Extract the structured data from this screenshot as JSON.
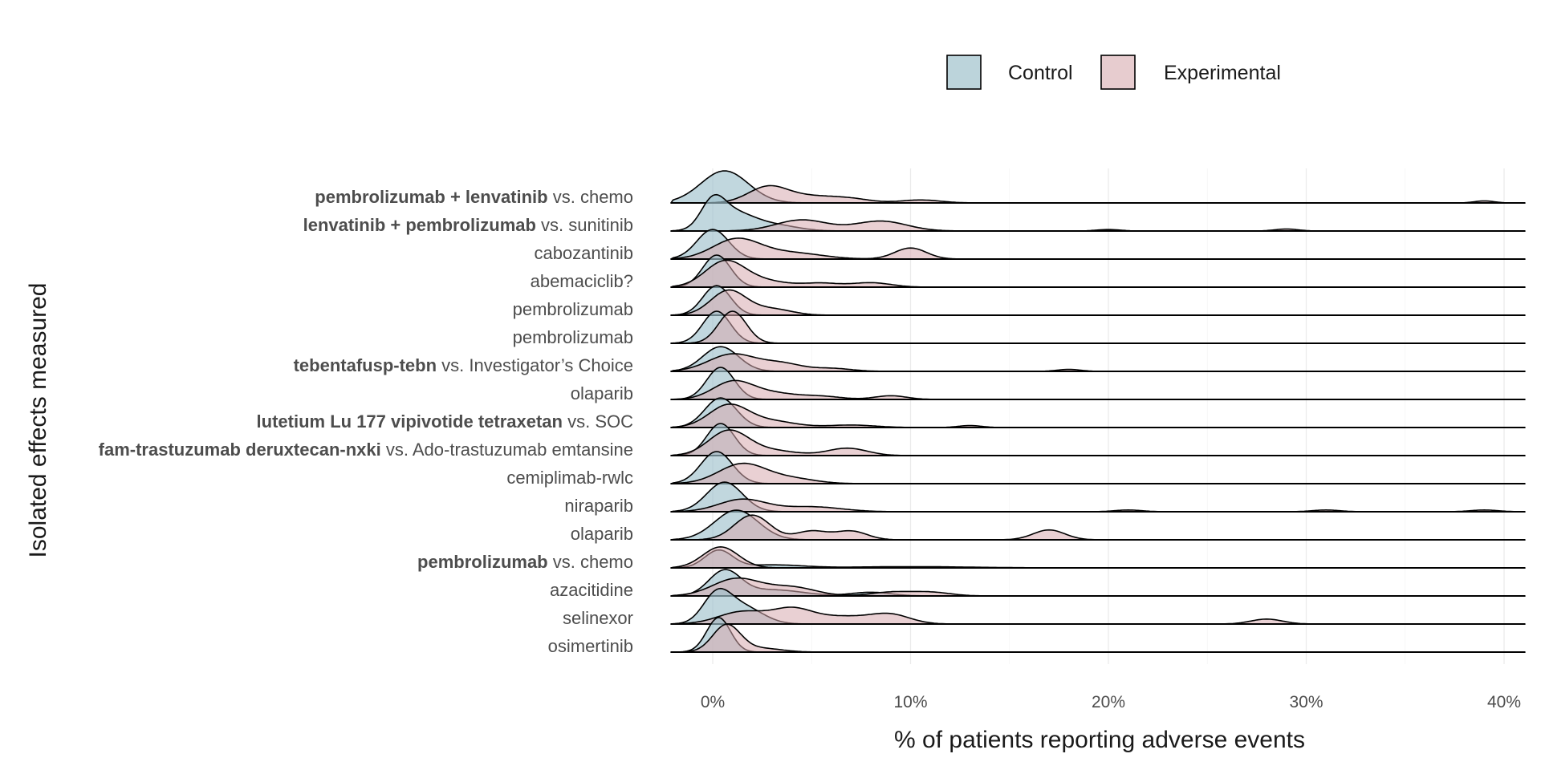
{
  "chart_data": {
    "type": "ridgeline",
    "xlabel": "% of patients reporting adverse events",
    "ylabel": "Isolated effects measured",
    "xlim": [
      -2,
      41
    ],
    "x_ticks": [
      0,
      10,
      20,
      30,
      40
    ],
    "x_tick_labels": [
      "0%",
      "10%",
      "20%",
      "30%",
      "40%"
    ],
    "grid": true,
    "legend": {
      "position": "top",
      "entries": [
        {
          "name": "Control",
          "color": "#9fc2cc"
        },
        {
          "name": "Experimental",
          "color": "#d7aaaf"
        }
      ]
    },
    "rows": [
      {
        "label_parts": [
          {
            "text": "pembrolizumab + lenvatinib",
            "bold": true
          },
          {
            "text": " vs. chemo",
            "bold": false
          }
        ],
        "control": [
          [
            0.6,
            1.2,
            1.3
          ]
        ],
        "experimental": [
          [
            2.8,
            1.0,
            0.65
          ],
          [
            5,
            1.2,
            0.25
          ],
          [
            7,
            1,
            0.15
          ],
          [
            10.5,
            1,
            0.12
          ],
          [
            39,
            0.5,
            0.08
          ]
        ]
      },
      {
        "label_parts": [
          {
            "text": "lenvatinib + pembrolizumab",
            "bold": true
          },
          {
            "text": " vs. sunitinib",
            "bold": false
          }
        ],
        "control": [
          [
            0,
            0.6,
            1.0
          ],
          [
            1.0,
            1.0,
            0.7
          ],
          [
            3,
            1.2,
            0.25
          ]
        ],
        "experimental": [
          [
            4.5,
            1.3,
            0.45
          ],
          [
            8.5,
            1.3,
            0.4
          ],
          [
            20,
            0.6,
            0.06
          ],
          [
            29,
            0.6,
            0.08
          ]
        ]
      },
      {
        "label_parts": [
          {
            "text": "cabozantinib",
            "bold": false
          }
        ],
        "control": [
          [
            0,
            0.8,
            1.2
          ]
        ],
        "experimental": [
          [
            1.2,
            1.2,
            0.8
          ],
          [
            4,
            1.5,
            0.25
          ],
          [
            10,
            0.8,
            0.45
          ]
        ]
      },
      {
        "label_parts": [
          {
            "text": "abemaciclib?",
            "bold": false
          }
        ],
        "control": [
          [
            0.2,
            0.7,
            1.3
          ]
        ],
        "experimental": [
          [
            0.6,
            1.0,
            1.0
          ],
          [
            2.5,
            1.3,
            0.25
          ],
          [
            5.5,
            0.9,
            0.15
          ],
          [
            8,
            1,
            0.18
          ]
        ]
      },
      {
        "label_parts": [
          {
            "text": "pembrolizumab",
            "bold": false
          }
        ],
        "control": [
          [
            0.2,
            0.7,
            1.2
          ]
        ],
        "experimental": [
          [
            0.8,
            0.9,
            1.0
          ],
          [
            3,
            1,
            0.25
          ]
        ]
      },
      {
        "label_parts": [
          {
            "text": "pembrolizumab",
            "bold": false
          }
        ],
        "control": [
          [
            0.2,
            0.7,
            1.3
          ]
        ],
        "experimental": [
          [
            1.0,
            0.7,
            1.3
          ]
        ]
      },
      {
        "label_parts": [
          {
            "text": "tebentafusp-tebn",
            "bold": true
          },
          {
            "text": " vs. Investigator’s Choice",
            "bold": false
          }
        ],
        "control": [
          [
            0.4,
            0.9,
            1.0
          ]
        ],
        "experimental": [
          [
            1,
            1.2,
            0.7
          ],
          [
            3.5,
            1,
            0.3
          ],
          [
            6,
            1,
            0.12
          ],
          [
            18,
            0.6,
            0.08
          ]
        ]
      },
      {
        "label_parts": [
          {
            "text": "olaparib",
            "bold": false
          }
        ],
        "control": [
          [
            0.4,
            0.7,
            1.3
          ]
        ],
        "experimental": [
          [
            1,
            1,
            0.7
          ],
          [
            3,
            1.2,
            0.25
          ],
          [
            5.5,
            1,
            0.12
          ],
          [
            9,
            0.8,
            0.15
          ]
        ]
      },
      {
        "label_parts": [
          {
            "text": "lutetium Lu 177 vipivotide tetraxetan",
            "bold": true
          },
          {
            "text": " vs. SOC",
            "bold": false
          }
        ],
        "control": [
          [
            0.4,
            0.8,
            1.2
          ]
        ],
        "experimental": [
          [
            0.8,
            1.0,
            0.9
          ],
          [
            3,
            1.2,
            0.25
          ],
          [
            7,
            1.2,
            0.1
          ],
          [
            13,
            0.6,
            0.08
          ]
        ]
      },
      {
        "label_parts": [
          {
            "text": "fam-trastuzumab deruxtecan-nxki",
            "bold": true
          },
          {
            "text": " vs. Ado-trastuzumab emtansine",
            "bold": false
          }
        ],
        "control": [
          [
            0.4,
            0.7,
            1.3
          ]
        ],
        "experimental": [
          [
            0.8,
            1.0,
            1.0
          ],
          [
            3,
            1.2,
            0.2
          ],
          [
            6.8,
            1,
            0.3
          ]
        ]
      },
      {
        "label_parts": [
          {
            "text": "cemiplimab-rwlc",
            "bold": false
          }
        ],
        "control": [
          [
            0.2,
            0.8,
            1.3
          ]
        ],
        "experimental": [
          [
            1.5,
            1.2,
            0.8
          ],
          [
            4,
            1.2,
            0.2
          ]
        ]
      },
      {
        "label_parts": [
          {
            "text": "niraparib",
            "bold": false
          }
        ],
        "control": [
          [
            0.6,
            0.9,
            1.2
          ]
        ],
        "experimental": [
          [
            1.5,
            1.2,
            0.5
          ],
          [
            5,
            1.5,
            0.2
          ],
          [
            21,
            0.7,
            0.07
          ],
          [
            31,
            0.7,
            0.07
          ],
          [
            39,
            0.7,
            0.07
          ]
        ]
      },
      {
        "label_parts": [
          {
            "text": "olaparib",
            "bold": false
          }
        ],
        "control": [
          [
            1.2,
            1.1,
            1.2
          ]
        ],
        "experimental": [
          [
            2,
            0.9,
            1.0
          ],
          [
            5,
            0.8,
            0.35
          ],
          [
            7,
            0.8,
            0.35
          ],
          [
            17,
            0.8,
            0.4
          ]
        ]
      },
      {
        "label_parts": [
          {
            "text": "pembrolizumab",
            "bold": true
          },
          {
            "text": " vs. chemo",
            "bold": false
          }
        ],
        "control": [
          [
            0.3,
            0.7,
            0.7
          ],
          [
            3,
            1.5,
            0.12
          ],
          [
            10,
            3,
            0.05
          ]
        ],
        "experimental": [
          [
            0.4,
            0.9,
            0.85
          ]
        ]
      },
      {
        "label_parts": [
          {
            "text": "azacitidine",
            "bold": false
          }
        ],
        "control": [
          [
            0.6,
            0.8,
            1.0
          ],
          [
            3,
            1.5,
            0.25
          ],
          [
            8,
            1,
            0.15
          ]
        ],
        "experimental": [
          [
            1.2,
            1.2,
            0.7
          ],
          [
            4,
            1.2,
            0.35
          ],
          [
            9,
            1,
            0.15
          ],
          [
            11,
            1,
            0.15
          ]
        ]
      },
      {
        "label_parts": [
          {
            "text": "selinexor",
            "bold": false
          }
        ],
        "control": [
          [
            0.2,
            0.7,
            1.1
          ],
          [
            1.5,
            1.0,
            0.7
          ]
        ],
        "experimental": [
          [
            1.5,
            1.2,
            0.5
          ],
          [
            4,
            1,
            0.55
          ],
          [
            6.5,
            1.5,
            0.3
          ],
          [
            9,
            1,
            0.35
          ],
          [
            28,
            0.8,
            0.2
          ]
        ]
      },
      {
        "label_parts": [
          {
            "text": "osimertinib",
            "bold": false
          }
        ],
        "control": [
          [
            0.3,
            0.6,
            1.4
          ]
        ],
        "experimental": [
          [
            0.7,
            0.7,
            1.1
          ],
          [
            2.5,
            1.0,
            0.15
          ]
        ]
      }
    ]
  }
}
